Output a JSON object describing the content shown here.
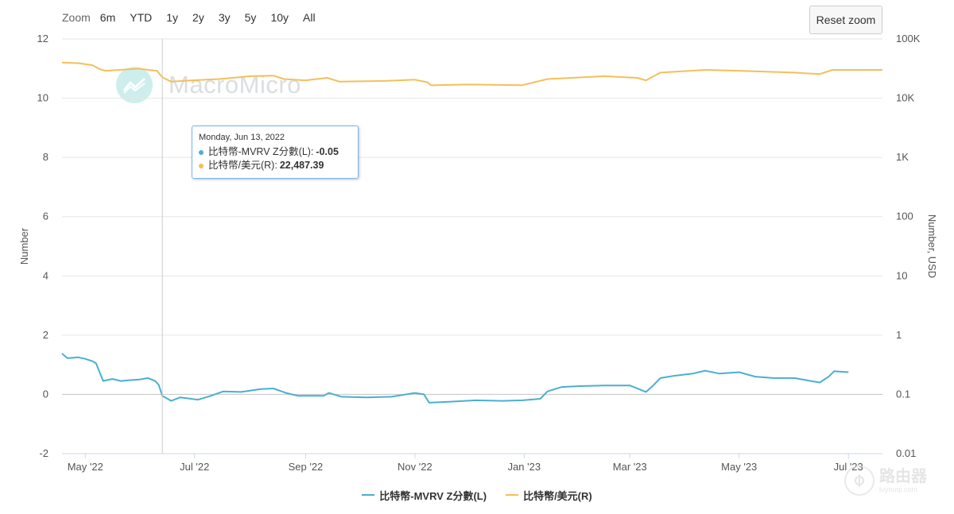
{
  "toolbar": {
    "zoom_label": "Zoom",
    "zoom_buttons": [
      "6m",
      "YTD",
      "1y",
      "2y",
      "3y",
      "5y",
      "10y",
      "All"
    ],
    "reset_zoom": "Reset zoom"
  },
  "watermark": {
    "text": "MacroMicro"
  },
  "site_mark": {
    "name": "路由器",
    "url": "luyouqi.com"
  },
  "tooltip": {
    "date": "Monday, Jun 13, 2022",
    "rows": [
      {
        "label": "比特幣-MVRV Z分數(L): ",
        "value": "-0.05",
        "color": "#4bafd0"
      },
      {
        "label": "比特幣/美元(R): ",
        "value": "22,487.39",
        "color": "#f4bf5a"
      }
    ]
  },
  "legend": [
    {
      "label": "比特幣-MVRV Z分數(L)",
      "color": "#4bafd0"
    },
    {
      "label": "比特幣/美元(R)",
      "color": "#f4bf5a"
    }
  ],
  "chart_data": {
    "type": "line",
    "left_axis": {
      "label": "Number",
      "ylim": [
        -2,
        12
      ],
      "ticks": [
        "12",
        "10",
        "8",
        "6",
        "4",
        "2",
        "0",
        "-2"
      ]
    },
    "right_axis": {
      "label": "Number, USD",
      "scale": "log",
      "ylim": [
        0.01,
        100000
      ],
      "ticks": [
        "100K",
        "10K",
        "1K",
        "100",
        "10",
        "1",
        "0.1",
        "0.01"
      ]
    },
    "x_ticks": [
      "May '22",
      "Jul '22",
      "Sep '22",
      "Nov '22",
      "Jan '23",
      "Mar '23",
      "May '23",
      "Jul '23"
    ],
    "x_tick_dates": [
      "2022-05-01",
      "2022-07-01",
      "2022-09-01",
      "2022-11-01",
      "2023-01-01",
      "2023-03-01",
      "2023-05-01",
      "2023-07-01"
    ],
    "x_range": [
      "2022-04-18",
      "2023-07-20"
    ],
    "crosshair_date": "2022-06-13",
    "grid": true,
    "series": [
      {
        "name": "比特幣-MVRV Z分數(L)",
        "axis": "left",
        "color": "#4bafd0",
        "points": [
          [
            "2022-04-18",
            1.38
          ],
          [
            "2022-04-21",
            1.22
          ],
          [
            "2022-04-27",
            1.25
          ],
          [
            "2022-05-01",
            1.2
          ],
          [
            "2022-05-05",
            1.12
          ],
          [
            "2022-05-07",
            1.05
          ],
          [
            "2022-05-09",
            0.75
          ],
          [
            "2022-05-11",
            0.45
          ],
          [
            "2022-05-16",
            0.52
          ],
          [
            "2022-05-21",
            0.45
          ],
          [
            "2022-05-26",
            0.48
          ],
          [
            "2022-05-31",
            0.5
          ],
          [
            "2022-06-05",
            0.55
          ],
          [
            "2022-06-09",
            0.45
          ],
          [
            "2022-06-11",
            0.32
          ],
          [
            "2022-06-13",
            -0.05
          ],
          [
            "2022-06-18",
            -0.22
          ],
          [
            "2022-06-23",
            -0.1
          ],
          [
            "2022-07-03",
            -0.18
          ],
          [
            "2022-07-10",
            -0.05
          ],
          [
            "2022-07-17",
            0.1
          ],
          [
            "2022-07-27",
            0.08
          ],
          [
            "2022-08-07",
            0.18
          ],
          [
            "2022-08-14",
            0.2
          ],
          [
            "2022-08-21",
            0.05
          ],
          [
            "2022-08-28",
            -0.05
          ],
          [
            "2022-09-11",
            -0.05
          ],
          [
            "2022-09-14",
            0.05
          ],
          [
            "2022-09-21",
            -0.08
          ],
          [
            "2022-10-05",
            -0.1
          ],
          [
            "2022-10-19",
            -0.08
          ],
          [
            "2022-11-01",
            0.05
          ],
          [
            "2022-11-06",
            0.0
          ],
          [
            "2022-11-09",
            -0.28
          ],
          [
            "2022-11-20",
            -0.25
          ],
          [
            "2022-12-05",
            -0.2
          ],
          [
            "2022-12-20",
            -0.22
          ],
          [
            "2022-12-31",
            -0.2
          ],
          [
            "2023-01-10",
            -0.15
          ],
          [
            "2023-01-14",
            0.1
          ],
          [
            "2023-01-22",
            0.25
          ],
          [
            "2023-02-01",
            0.28
          ],
          [
            "2023-02-15",
            0.3
          ],
          [
            "2023-03-01",
            0.3
          ],
          [
            "2023-03-10",
            0.08
          ],
          [
            "2023-03-14",
            0.3
          ],
          [
            "2023-03-18",
            0.55
          ],
          [
            "2023-03-25",
            0.62
          ],
          [
            "2023-04-05",
            0.7
          ],
          [
            "2023-04-12",
            0.8
          ],
          [
            "2023-04-20",
            0.7
          ],
          [
            "2023-05-01",
            0.75
          ],
          [
            "2023-05-10",
            0.6
          ],
          [
            "2023-05-20",
            0.55
          ],
          [
            "2023-06-01",
            0.55
          ],
          [
            "2023-06-10",
            0.45
          ],
          [
            "2023-06-15",
            0.4
          ],
          [
            "2023-06-20",
            0.6
          ],
          [
            "2023-06-23",
            0.78
          ],
          [
            "2023-07-01",
            0.75
          ]
        ]
      },
      {
        "name": "比特幣/美元(R)",
        "axis": "right",
        "color": "#f4bf5a",
        "points": [
          [
            "2022-04-18",
            40000
          ],
          [
            "2022-04-27",
            39000
          ],
          [
            "2022-05-05",
            36000
          ],
          [
            "2022-05-09",
            31000
          ],
          [
            "2022-05-12",
            29000
          ],
          [
            "2022-05-20",
            30000
          ],
          [
            "2022-05-31",
            31500
          ],
          [
            "2022-06-05",
            30000
          ],
          [
            "2022-06-10",
            29000
          ],
          [
            "2022-06-13",
            22487.39
          ],
          [
            "2022-06-18",
            19000
          ],
          [
            "2022-06-30",
            20000
          ],
          [
            "2022-07-15",
            21000
          ],
          [
            "2022-08-01",
            23500
          ],
          [
            "2022-08-14",
            24000
          ],
          [
            "2022-08-20",
            21000
          ],
          [
            "2022-09-01",
            20000
          ],
          [
            "2022-09-13",
            22000
          ],
          [
            "2022-09-20",
            19000
          ],
          [
            "2022-10-15",
            19500
          ],
          [
            "2022-11-01",
            20500
          ],
          [
            "2022-11-08",
            18500
          ],
          [
            "2022-11-10",
            16500
          ],
          [
            "2022-12-01",
            17000
          ],
          [
            "2022-12-31",
            16600
          ],
          [
            "2023-01-14",
            21000
          ],
          [
            "2023-02-15",
            23500
          ],
          [
            "2023-03-05",
            22000
          ],
          [
            "2023-03-10",
            20000
          ],
          [
            "2023-03-18",
            27000
          ],
          [
            "2023-04-12",
            30000
          ],
          [
            "2023-05-01",
            29000
          ],
          [
            "2023-06-01",
            27000
          ],
          [
            "2023-06-15",
            25500
          ],
          [
            "2023-06-22",
            30000
          ],
          [
            "2023-07-20",
            30000
          ]
        ]
      }
    ]
  }
}
